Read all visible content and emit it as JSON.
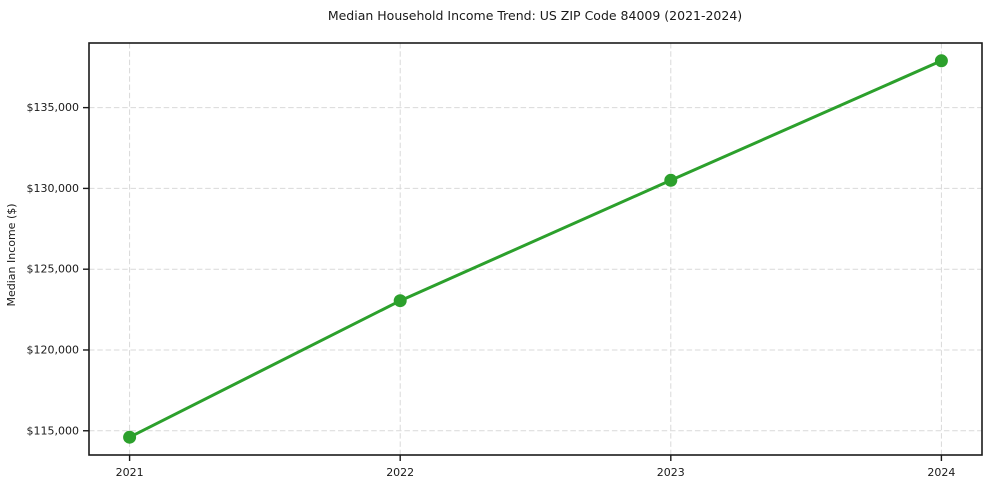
{
  "page": {
    "background": "#ffffff"
  },
  "chart_data": {
    "type": "line",
    "title": "Median Household Income Trend: US ZIP Code 84009 (2021-2024)",
    "xlabel": "",
    "ylabel": "Median Income ($)",
    "x": [
      2021,
      2022,
      2023,
      2024
    ],
    "x_tick_labels": [
      "2021",
      "2022",
      "2023",
      "2024"
    ],
    "series": [
      {
        "name": "Median Household Income",
        "values": [
          114600,
          123050,
          130500,
          137900
        ],
        "color": "#2ca02c",
        "marker": "circle"
      }
    ],
    "y_ticks": [
      115000,
      120000,
      125000,
      130000,
      135000
    ],
    "y_tick_labels": [
      "$115,000",
      "$120,000",
      "$125,000",
      "$130,000",
      "$135,000"
    ],
    "xlim": [
      2020.85,
      2024.15
    ],
    "ylim": [
      113500,
      139000
    ],
    "grid": true,
    "grid_line_style": "dashed",
    "grid_color": "#d9d9d9",
    "axis_color": "#1a1a1a",
    "legend": "none"
  }
}
